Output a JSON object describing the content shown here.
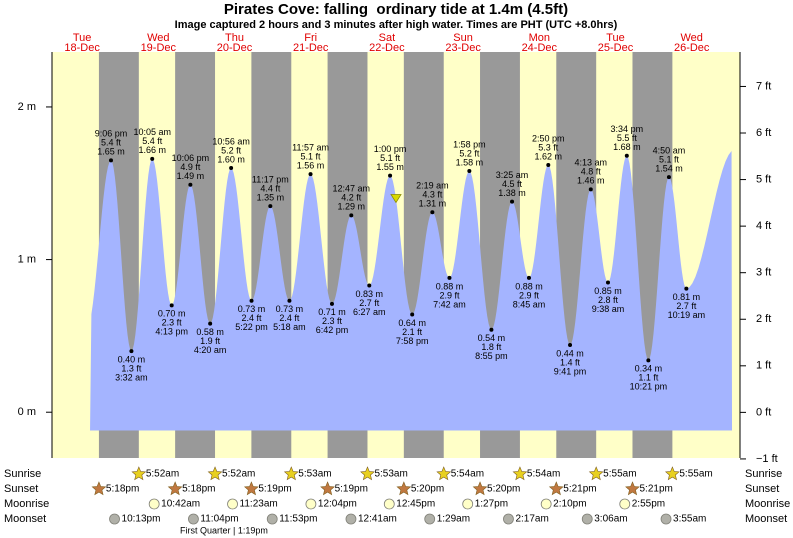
{
  "chart_data": {
    "type": "area",
    "title": "Pirates Cove: falling  ordinary tide at 1.4m (4.5ft)",
    "subtitle": "Image captured 2 hours and 3 minutes after high water. Times are PHT (UTC +8.0hrs)",
    "day_names": [
      "Tue",
      "Wed",
      "Thu",
      "Fri",
      "Sat",
      "Sun",
      "Mon",
      "Tue",
      "Wed"
    ],
    "categories": [
      "18-Dec",
      "19-Dec",
      "20-Dec",
      "21-Dec",
      "22-Dec",
      "23-Dec",
      "24-Dec",
      "25-Dec",
      "26-Dec"
    ],
    "ylim": [
      -0.3,
      2.36
    ],
    "yticks": [
      {
        "value": 0,
        "label": "0 m"
      },
      {
        "value": 1,
        "label": "1 m"
      },
      {
        "value": 2,
        "label": "2 m"
      }
    ],
    "y2lim": [
      -0.98,
      7.74
    ],
    "y2ticks": [
      {
        "value": -1,
        "label": "−1 ft"
      },
      {
        "value": 0,
        "label": "0 ft"
      },
      {
        "value": 1,
        "label": "1 ft"
      },
      {
        "value": 2,
        "label": "2 ft"
      },
      {
        "value": 3,
        "label": "3 ft"
      },
      {
        "value": 4,
        "label": "4 ft"
      },
      {
        "value": 5,
        "label": "5 ft"
      },
      {
        "value": 6,
        "label": "6 ft"
      },
      {
        "value": 7,
        "label": "7 ft"
      }
    ],
    "color": "#a4b4ff",
    "current_level": 1.4,
    "extremes": {
      "days": [
        "18-Dec",
        "19-Dec",
        "19-Dec",
        "19-Dec",
        "19-Dec",
        "20-Dec",
        "20-Dec",
        "20-Dec",
        "20-Dec",
        "21-Dec",
        "21-Dec",
        "21-Dec",
        "22-Dec",
        "22-Dec",
        "22-Dec",
        "22-Dec",
        "23-Dec",
        "23-Dec",
        "23-Dec",
        "23-Dec",
        "24-Dec",
        "24-Dec",
        "24-Dec",
        "24-Dec",
        "25-Dec",
        "25-Dec",
        "25-Dec",
        "25-Dec",
        "26-Dec",
        "26-Dec"
      ],
      "times": [
        "9:06 pm",
        "3:32 am",
        "10:05 am",
        "4:13 pm",
        "10:06 pm",
        "4:20 am",
        "10:56 am",
        "5:22 pm",
        "11:17 pm",
        "5:18 am",
        "11:57 am",
        "6:42 pm",
        "12:47 am",
        "6:27 am",
        "1:00 pm",
        "7:58 pm",
        "2:19 am",
        "7:42 am",
        "1:58 pm",
        "8:55 pm",
        "3:25 am",
        "8:45 am",
        "2:50 pm",
        "9:41 pm",
        "4:13 am",
        "9:38 am",
        "3:34 pm",
        "10:21 pm",
        "4:50 am",
        "10:19 am"
      ],
      "values": [
        1.65,
        0.4,
        1.66,
        0.7,
        1.49,
        0.58,
        1.6,
        0.73,
        1.35,
        0.73,
        1.56,
        0.71,
        1.29,
        0.83,
        1.55,
        0.64,
        1.31,
        0.88,
        1.58,
        0.54,
        1.38,
        0.88,
        1.62,
        0.44,
        1.46,
        0.85,
        1.68,
        0.34,
        1.54,
        0.81
      ],
      "value_labels": [
        "1.65 m",
        "0.40 m",
        "1.66 m",
        "0.70 m",
        "1.49 m",
        "0.58 m",
        "1.60 m",
        "0.73 m",
        "1.35 m",
        "0.73 m",
        "1.56 m",
        "0.71 m",
        "1.29 m",
        "0.83 m",
        "1.55 m",
        "0.64 m",
        "1.31 m",
        "0.88 m",
        "1.58 m",
        "0.54 m",
        "1.38 m",
        "0.88 m",
        "1.62 m",
        "0.44 m",
        "1.46 m",
        "0.85 m",
        "1.68 m",
        "0.34 m",
        "1.54 m",
        "0.81 m"
      ],
      "feet_labels": [
        "5.4 ft",
        "1.3 ft",
        "5.4 ft",
        "2.3 ft",
        "4.9 ft",
        "1.9 ft",
        "5.2 ft",
        "2.4 ft",
        "4.4 ft",
        "2.4 ft",
        "5.1 ft",
        "2.3 ft",
        "4.2 ft",
        "2.7 ft",
        "5.1 ft",
        "2.1 ft",
        "4.3 ft",
        "2.9 ft",
        "5.2 ft",
        "1.8 ft",
        "4.5 ft",
        "2.9 ft",
        "5.3 ft",
        "1.4 ft",
        "4.8 ft",
        "2.8 ft",
        "5.5 ft",
        "1.1 ft",
        "5.1 ft",
        "2.7 ft"
      ]
    },
    "almanac": [
      {
        "name": "Sunrise",
        "marker": "star",
        "color": "#e8d020",
        "days": [
          "19-Dec",
          "20-Dec",
          "21-Dec",
          "22-Dec",
          "23-Dec",
          "24-Dec",
          "25-Dec",
          "26-Dec"
        ],
        "times": [
          "5:52am",
          "5:52am",
          "5:53am",
          "5:53am",
          "5:54am",
          "5:54am",
          "5:55am",
          "5:55am"
        ]
      },
      {
        "name": "Sunset",
        "marker": "star",
        "color": "#c07840",
        "days": [
          "18-Dec",
          "19-Dec",
          "20-Dec",
          "21-Dec",
          "22-Dec",
          "23-Dec",
          "24-Dec",
          "25-Dec"
        ],
        "times": [
          "5:18pm",
          "5:18pm",
          "5:19pm",
          "5:19pm",
          "5:20pm",
          "5:20pm",
          "5:21pm",
          "5:21pm"
        ]
      },
      {
        "name": "Moonrise",
        "marker": "circle",
        "color": "#ffffc8",
        "days": [
          "19-Dec",
          "20-Dec",
          "21-Dec",
          "22-Dec",
          "23-Dec",
          "24-Dec",
          "25-Dec"
        ],
        "times": [
          "10:42am",
          "11:23am",
          "12:04pm",
          "12:45pm",
          "1:27pm",
          "2:10pm",
          "2:55pm"
        ]
      },
      {
        "name": "Moonset",
        "marker": "circle",
        "color": "#b0b0a8",
        "days": [
          "18-Dec",
          "19-Dec",
          "20-Dec",
          "22-Dec",
          "23-Dec",
          "24-Dec",
          "25-Dec",
          "26-Dec"
        ],
        "times": [
          "10:13pm",
          "11:04pm",
          "11:53pm",
          "12:41am",
          "1:29am",
          "2:17am",
          "3:06am",
          "3:55am"
        ]
      }
    ],
    "moon_phase": "First Quarter | 1:19pm"
  }
}
